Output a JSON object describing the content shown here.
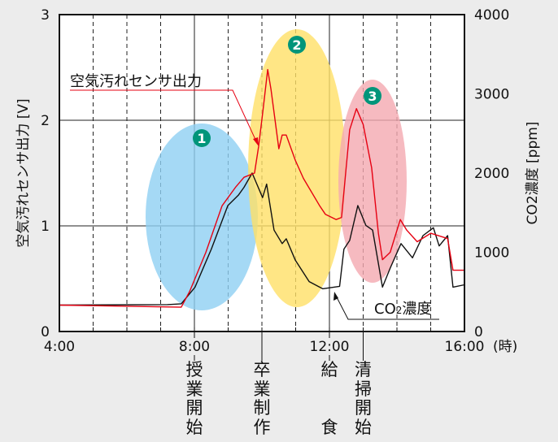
{
  "chart_data": {
    "type": "line",
    "title": "",
    "xlabel_unit": "(時)",
    "x_ticks": [
      "4:00",
      "8:00",
      "12:00",
      "16:00"
    ],
    "xlim": [
      4,
      16
    ],
    "ylabel_left": "空気汚れセンサ出力 [V]",
    "ylabel_right": "CO2濃度 [ppm]",
    "ylim_left": [
      0,
      3
    ],
    "ylim_right": [
      0,
      4000
    ],
    "y_ticks_left": [
      "0",
      "1",
      "2",
      "3"
    ],
    "y_ticks_right": [
      "0",
      "1000",
      "2000",
      "3000",
      "4000"
    ],
    "grid": true,
    "series": [
      {
        "name": "空気汚れセンサ出力",
        "axis": "left",
        "color": "#e60012",
        "x": [
          4.0,
          7.61,
          7.86,
          8.34,
          8.82,
          9.23,
          9.47,
          9.78,
          9.9,
          10.02,
          10.17,
          10.27,
          10.5,
          10.6,
          10.72,
          10.99,
          11.23,
          11.71,
          11.88,
          12.2,
          12.36,
          12.6,
          12.8,
          13.0,
          13.25,
          13.45,
          13.57,
          13.8,
          14.1,
          14.29,
          14.6,
          15.0,
          15.5,
          15.66,
          16.0
        ],
        "y": [
          0.25,
          0.23,
          0.38,
          0.75,
          1.19,
          1.37,
          1.46,
          1.5,
          1.75,
          2.06,
          2.48,
          2.29,
          1.73,
          1.86,
          1.86,
          1.62,
          1.45,
          1.19,
          1.11,
          1.06,
          1.08,
          1.91,
          2.11,
          1.96,
          1.55,
          0.93,
          0.68,
          0.75,
          1.06,
          0.96,
          0.85,
          0.93,
          0.88,
          0.58,
          0.58
        ]
      },
      {
        "name": "CO2濃度",
        "axis": "right",
        "color": "#111111",
        "x": [
          4.0,
          7.2,
          7.61,
          8.02,
          8.5,
          8.99,
          9.3,
          9.47,
          9.71,
          10.02,
          10.14,
          10.36,
          10.6,
          10.72,
          10.99,
          11.4,
          11.8,
          12.3,
          12.43,
          12.6,
          12.84,
          13.08,
          13.28,
          13.57,
          13.8,
          14.12,
          14.46,
          14.77,
          15.08,
          15.25,
          15.5,
          15.66,
          16.0
        ],
        "y": [
          333,
          340,
          350,
          560,
          1040,
          1590,
          1720,
          1820,
          2000,
          1690,
          1860,
          1280,
          1110,
          1170,
          900,
          630,
          540,
          570,
          1040,
          1150,
          1590,
          1340,
          1280,
          560,
          800,
          1110,
          930,
          1210,
          1310,
          1080,
          1210,
          560,
          590
        ]
      }
    ],
    "annotations": {
      "sensor_label": "空気汚れセンサ出力",
      "co2_label": "CO",
      "co2_sub": "2",
      "co2_suffix": "濃度",
      "regions": [
        {
          "label": "1",
          "color": "#8fd0f2"
        },
        {
          "label": "2",
          "color": "#ffe066"
        },
        {
          "label": "3",
          "color": "#f4a9b0"
        }
      ],
      "events": [
        {
          "time": 8,
          "chars": [
            "授",
            "業",
            "開",
            "始"
          ]
        },
        {
          "time": 10,
          "chars": [
            "卒",
            "業",
            "制",
            "作"
          ]
        },
        {
          "time": 12,
          "chars": [
            "給",
            "",
            "",
            "食"
          ]
        },
        {
          "time": 13,
          "chars": [
            "清",
            "掃",
            "開",
            "始"
          ]
        }
      ],
      "badge_color": "#00957a"
    }
  }
}
